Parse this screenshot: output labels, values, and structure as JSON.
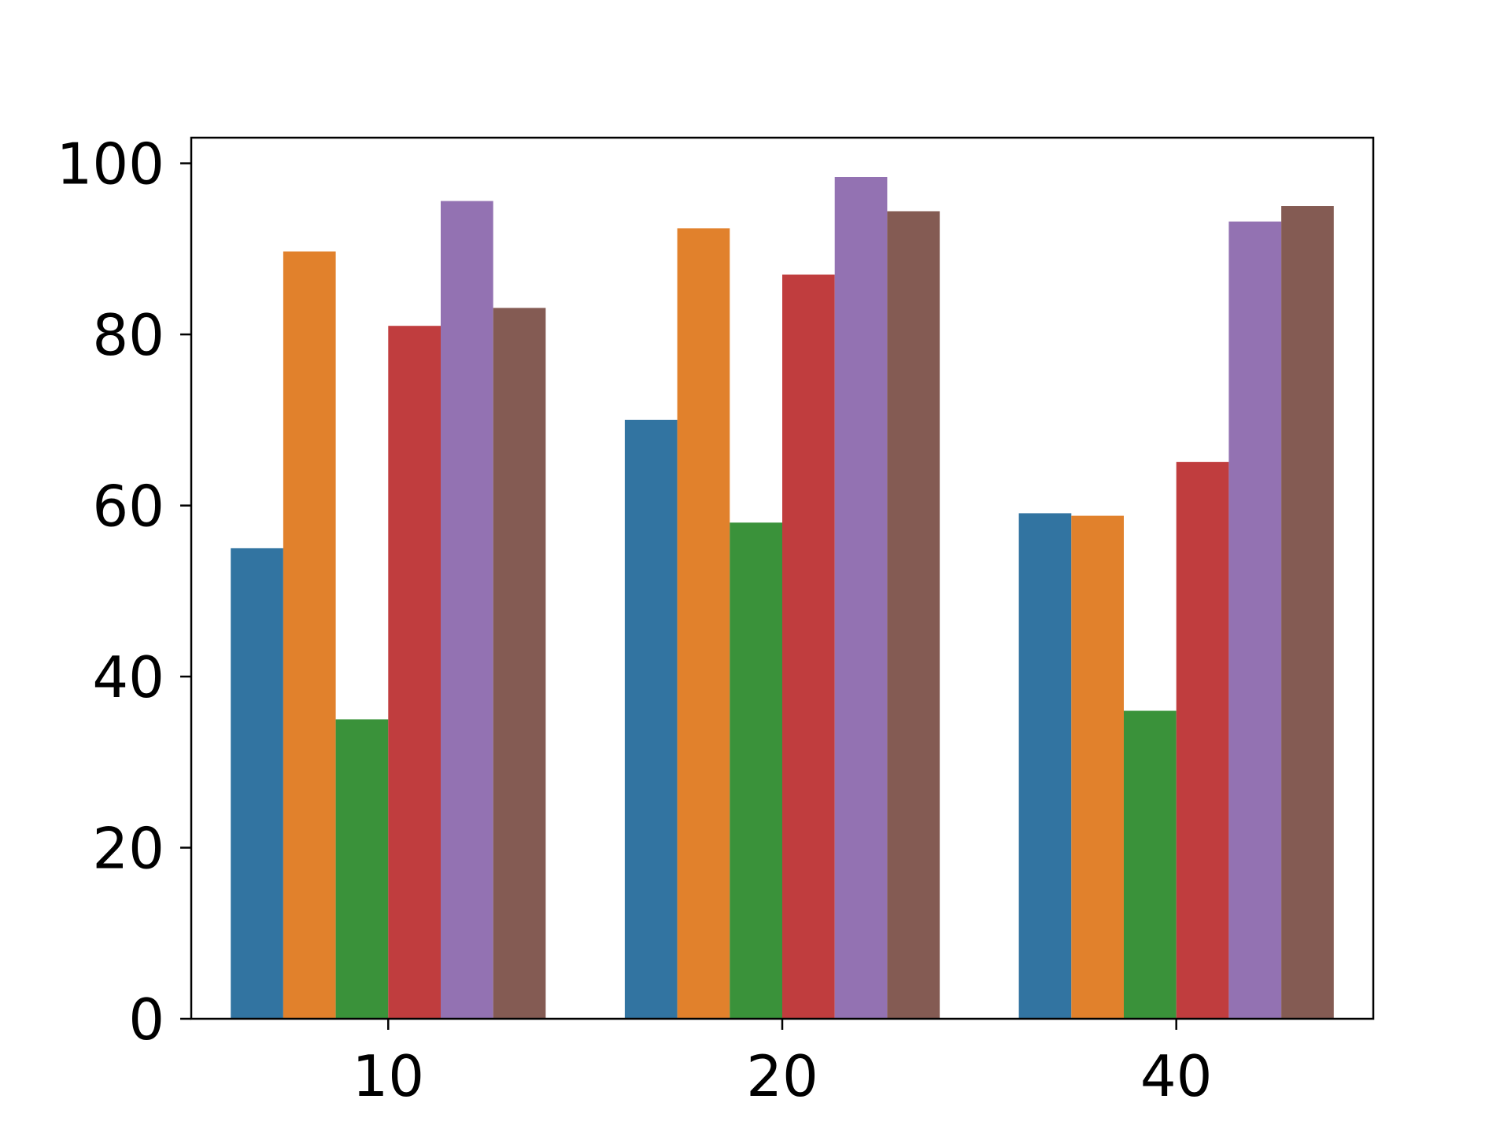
{
  "chart_data": {
    "type": "bar",
    "title": "",
    "xlabel": "",
    "ylabel": "",
    "categories": [
      "10",
      "20",
      "40"
    ],
    "ylim": [
      0,
      103
    ],
    "yticks": [
      0,
      20,
      40,
      60,
      80,
      100
    ],
    "grid": false,
    "legend": "none",
    "series": [
      {
        "color": "#3274a1",
        "values": [
          55.0,
          70.0,
          59.1
        ]
      },
      {
        "color": "#e1812c",
        "values": [
          89.7,
          92.4,
          58.8
        ]
      },
      {
        "color": "#3a923a",
        "values": [
          35.0,
          58.0,
          36.0
        ]
      },
      {
        "color": "#c03d3e",
        "values": [
          81.0,
          87.0,
          65.1
        ]
      },
      {
        "color": "#9372b2",
        "values": [
          95.6,
          98.4,
          93.2
        ]
      },
      {
        "color": "#845b53",
        "values": [
          83.1,
          94.4,
          95.0
        ]
      }
    ]
  }
}
